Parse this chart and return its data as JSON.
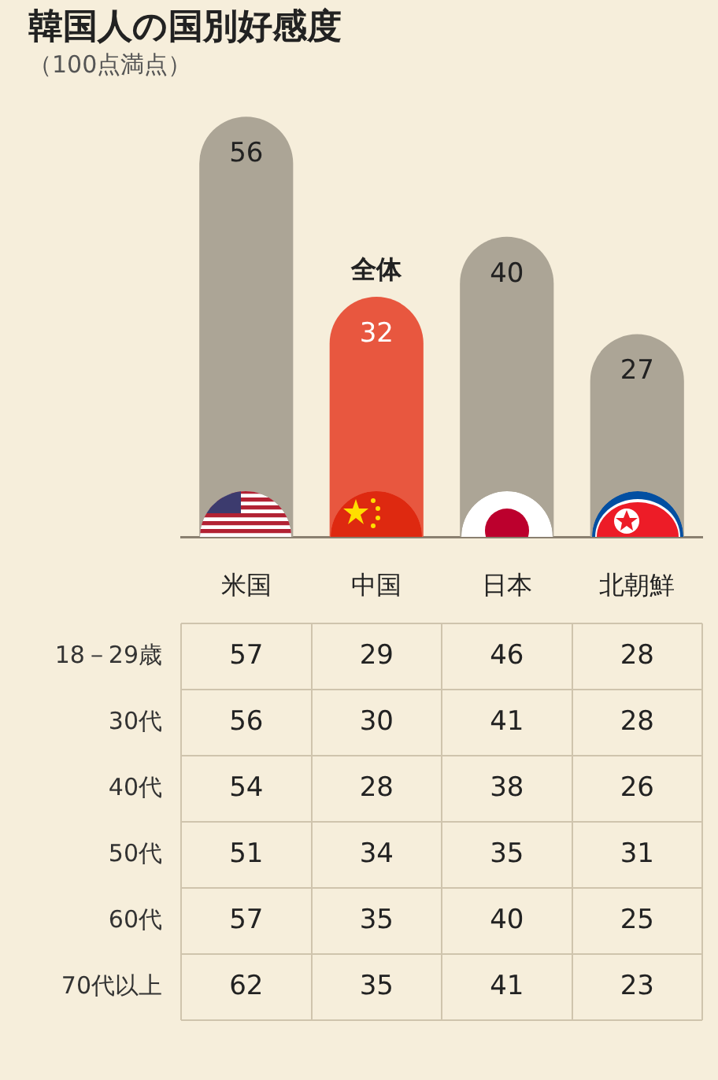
{
  "chart_data": [
    {
      "type": "bar",
      "title": "韓国人の国別好感度",
      "subtitle": "（100点満点）",
      "categories": [
        "米国",
        "中国",
        "日本",
        "北朝鮮"
      ],
      "values": [
        56,
        32,
        40,
        27
      ],
      "colors": [
        "#aca596",
        "#e8573f",
        "#aca596",
        "#aca596"
      ],
      "data_labels": true,
      "tick_labels": false,
      "annotations": [
        {
          "text": "全体",
          "x": "中国",
          "y": 32
        }
      ]
    },
    {
      "type": "heatmap",
      "categories": [
        "米国",
        "中国",
        "日本",
        "北朝鮮"
      ],
      "y_categories": [
        "18－29歳",
        "30代",
        "40代",
        "50代",
        "60代",
        "70代以上"
      ],
      "cells": [
        [
          57,
          29,
          46,
          28
        ],
        [
          56,
          30,
          41,
          28
        ],
        [
          54,
          28,
          38,
          26
        ],
        [
          51,
          34,
          35,
          31
        ],
        [
          57,
          35,
          40,
          25
        ],
        [
          62,
          35,
          41,
          23
        ]
      ],
      "grid": true,
      "data_labels": true
    }
  ]
}
